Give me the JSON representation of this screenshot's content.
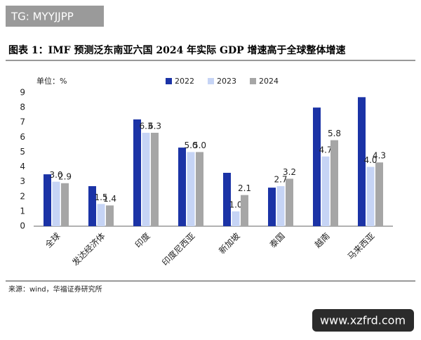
{
  "watermark": "TG: MYYJJPP",
  "source": "来源：wind，华福证券研究所",
  "site": "www.xzfrd.com",
  "chart_data": {
    "type": "bar",
    "title": "图表 1：IMF 预测泛东南亚六国 2024 年实际 GDP 增速高于全球整体增速",
    "y_label": "单位：%",
    "categories": [
      "全球",
      "发达经济体",
      "印度",
      "印度尼西亚",
      "新加坡",
      "泰国",
      "越南",
      "马来西亚"
    ],
    "series": [
      {
        "name": "2022",
        "color": "#1b33a6",
        "values": [
          3.5,
          2.7,
          7.2,
          5.3,
          3.6,
          2.6,
          8.0,
          8.7
        ]
      },
      {
        "name": "2023",
        "color": "#c6d4f5",
        "values": [
          3.0,
          1.5,
          6.3,
          5.0,
          1.0,
          2.7,
          4.7,
          4.0
        ],
        "value_labels": [
          "3.0",
          "1.5",
          "6.3",
          "5.0",
          "1.0",
          "2.7",
          "4.7",
          "4.0"
        ]
      },
      {
        "name": "2024",
        "color": "#a6a6a6",
        "values": [
          2.9,
          1.4,
          6.3,
          5.0,
          2.1,
          3.2,
          5.8,
          4.3
        ],
        "value_labels": [
          "2.9",
          "1.4",
          "6.3",
          "5.0",
          "2.1",
          "3.2",
          "5.8",
          "4.3"
        ]
      }
    ],
    "ylim": [
      0,
      9
    ],
    "yticks": [
      0,
      1,
      2,
      3,
      4,
      5,
      6,
      7,
      8,
      9
    ],
    "grid": false,
    "legend": "top"
  }
}
